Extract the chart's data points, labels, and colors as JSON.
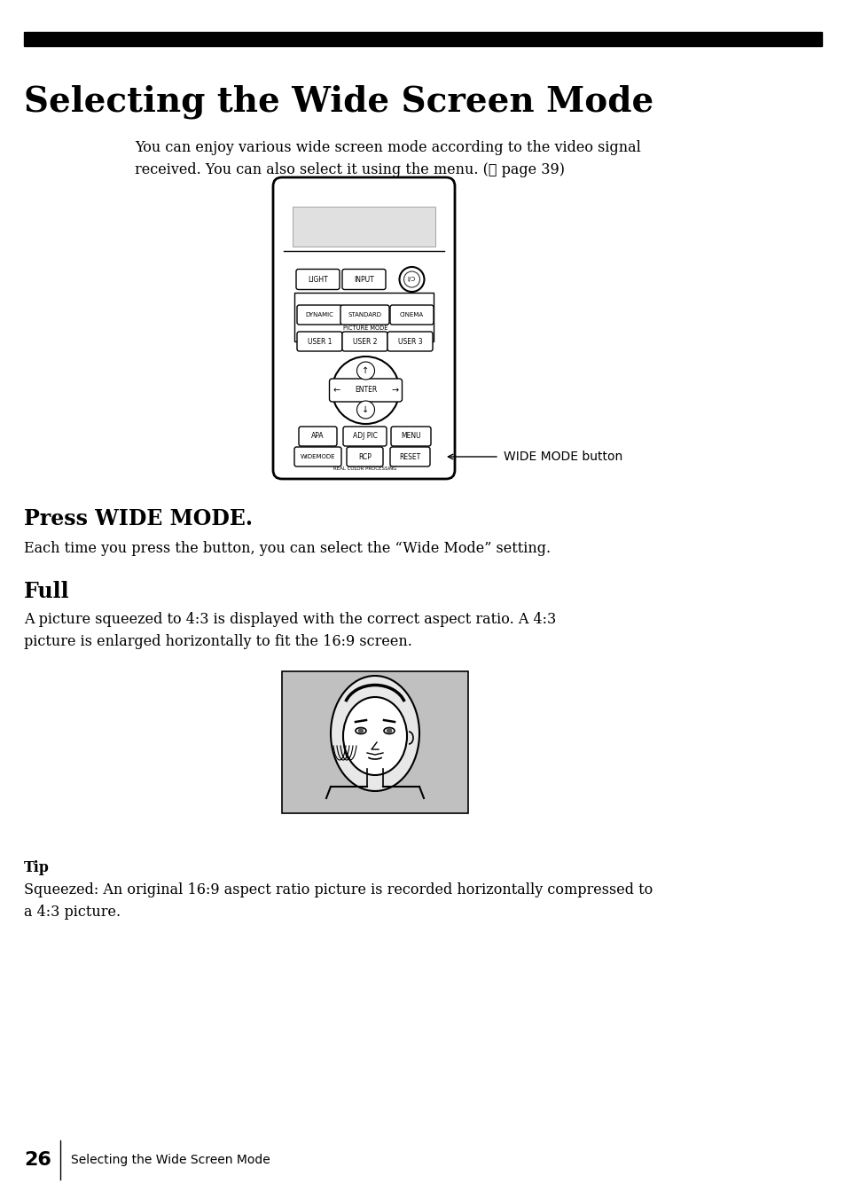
{
  "title": "Selecting the Wide Screen Mode",
  "header_bar_color": "#000000",
  "bg_color": "#ffffff",
  "body_text_1": "You can enjoy various wide screen mode according to the video signal\nreceived. You can also select it using the menu. (☉ page 39)",
  "section1_title": "Press WIDE MODE.",
  "section1_text": "Each time you press the button, you can select the “Wide Mode” setting.",
  "section2_title": "Full",
  "section2_text": "A picture squeezed to 4:3 is displayed with the correct aspect ratio. A 4:3\npicture is enlarged horizontally to fit the 16:9 screen.",
  "tip_title": "Tip",
  "tip_text": "Squeezed: An original 16:9 aspect ratio picture is recorded horizontally compressed to\na 4:3 picture.",
  "footer_number": "26",
  "footer_text": "Selecting the Wide Screen Mode",
  "wide_mode_label": "WIDE MODE button",
  "face_bg": "#c0c0c0"
}
